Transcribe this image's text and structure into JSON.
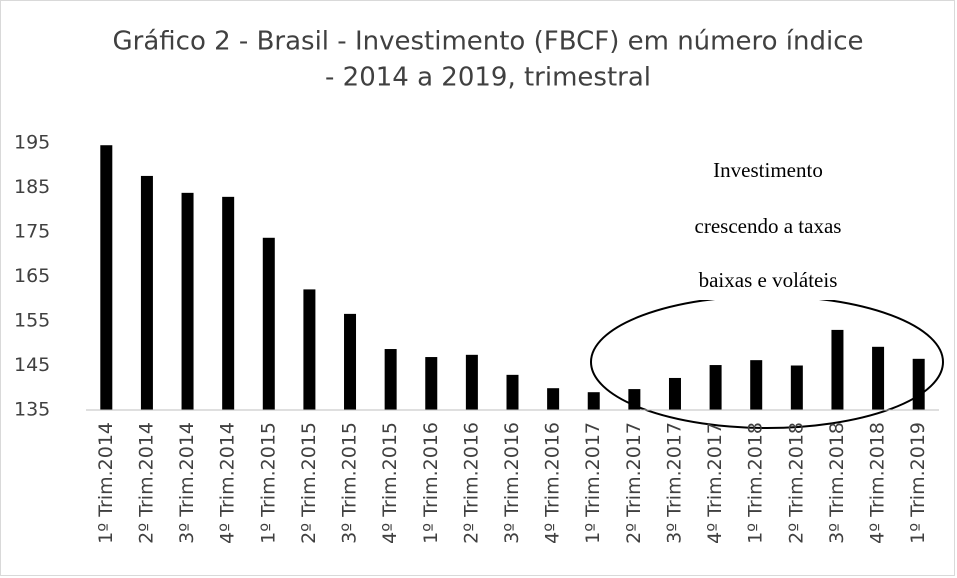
{
  "chart_data": {
    "type": "bar",
    "title": [
      "Gráfico 2 - Brasil - Investimento (FBCF) em número índice",
      "- 2014 a 2019, trimestral"
    ],
    "annotation": [
      "Investimento",
      "crescendo a taxas",
      "baixas e voláteis"
    ],
    "categories": [
      "1º Trim.2014",
      "2º Trim.2014",
      "3º Trim.2014",
      "4º Trim.2014",
      "1º Trim.2015",
      "2º Trim.2015",
      "3º Trim.2015",
      "4º Trim.2015",
      "1º Trim.2016",
      "2º Trim.2016",
      "3º Trim.2016",
      "4º Trim.2016",
      "1º Trim.2017",
      "2º Trim.2017",
      "3º Trim.2017",
      "4º Trim.2017",
      "1º Trim.2018",
      "2º Trim.2018",
      "3º Trim.2018",
      "4º Trim.2018",
      "1º Trim.2019"
    ],
    "values": [
      194.5,
      187.6,
      183.8,
      182.9,
      173.7,
      162.1,
      156.6,
      148.7,
      146.9,
      147.4,
      142.9,
      139.9,
      139.0,
      139.7,
      142.2,
      145.1,
      146.2,
      145.0,
      153.0,
      149.2,
      146.5
    ],
    "color": "#000000",
    "ylim": [
      135,
      195
    ],
    "yticks": [
      135,
      145,
      155,
      165,
      175,
      185,
      195
    ],
    "grid": false
  }
}
